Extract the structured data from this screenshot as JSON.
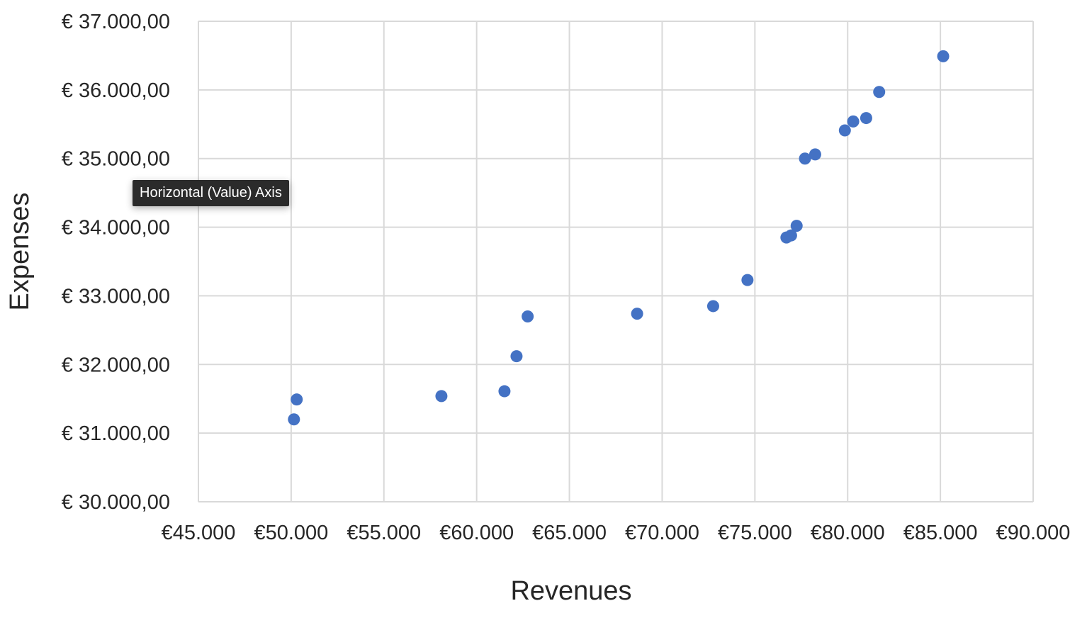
{
  "chart_data": {
    "type": "scatter",
    "xlabel": "Revenues",
    "ylabel": "Expenses",
    "xlim": [
      45000,
      90000
    ],
    "ylim": [
      30000,
      37000
    ],
    "x_ticks": [
      45000,
      50000,
      55000,
      60000,
      65000,
      70000,
      75000,
      80000,
      85000,
      90000
    ],
    "x_tick_labels": [
      "€45.000",
      "€50.000",
      "€55.000",
      "€60.000",
      "€65.000",
      "€70.000",
      "€75.000",
      "€80.000",
      "€85.000",
      "€90.000"
    ],
    "y_ticks": [
      30000,
      31000,
      32000,
      33000,
      34000,
      35000,
      36000,
      37000
    ],
    "y_tick_labels": [
      "€ 30.000,00",
      "€ 31.000,00",
      "€ 32.000,00",
      "€ 33.000,00",
      "€ 34.000,00",
      "€ 35.000,00",
      "€ 36.000,00",
      "€ 37.000,00"
    ],
    "grid": true,
    "legend": "none",
    "series": [
      {
        "color": "#4472C4",
        "points": [
          {
            "x": 50150,
            "y": 31200
          },
          {
            "x": 50300,
            "y": 31490
          },
          {
            "x": 58100,
            "y": 31540
          },
          {
            "x": 61500,
            "y": 31610
          },
          {
            "x": 62150,
            "y": 32120
          },
          {
            "x": 62750,
            "y": 32700
          },
          {
            "x": 68650,
            "y": 32740
          },
          {
            "x": 72750,
            "y": 32850
          },
          {
            "x": 74600,
            "y": 33230
          },
          {
            "x": 76700,
            "y": 33850
          },
          {
            "x": 76950,
            "y": 33880
          },
          {
            "x": 77250,
            "y": 34020
          },
          {
            "x": 77700,
            "y": 35000
          },
          {
            "x": 78250,
            "y": 35060
          },
          {
            "x": 79850,
            "y": 35410
          },
          {
            "x": 80300,
            "y": 35540
          },
          {
            "x": 81000,
            "y": 35590
          },
          {
            "x": 81700,
            "y": 35970
          },
          {
            "x": 85150,
            "y": 36490
          }
        ]
      }
    ]
  },
  "tooltip": {
    "text": "Horizontal (Value) Axis"
  },
  "colors": {
    "marker": "#4472C4",
    "grid": "#d9d9d9",
    "text": "#262626"
  }
}
